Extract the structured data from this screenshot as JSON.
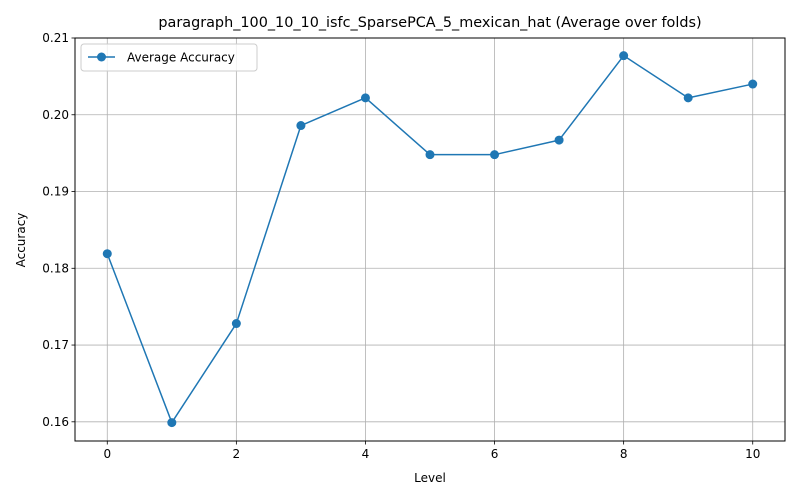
{
  "chart_data": {
    "type": "line",
    "title": "paragraph_100_10_10_isfc_SparsePCA_5_mexican_hat (Average over folds)",
    "xlabel": "Level",
    "ylabel": "Accuracy",
    "xlim": [
      -0.5,
      10.5
    ],
    "ylim": [
      0.1575,
      0.21
    ],
    "xticks": [
      0,
      2,
      4,
      6,
      8,
      10
    ],
    "xtick_labels": [
      "0",
      "2",
      "4",
      "6",
      "8",
      "10"
    ],
    "yticks": [
      0.16,
      0.17,
      0.18,
      0.19,
      0.2,
      0.21
    ],
    "ytick_labels": [
      "0.16",
      "0.17",
      "0.18",
      "0.19",
      "0.20",
      "0.21"
    ],
    "grid": true,
    "legend_position": "top-left",
    "series": [
      {
        "name": "Average Accuracy",
        "color": "#1f77b4",
        "marker": "circle",
        "x": [
          0,
          1,
          2,
          3,
          4,
          5,
          6,
          7,
          8,
          9,
          10
        ],
        "y": [
          0.1819,
          0.1599,
          0.1728,
          0.1986,
          0.2022,
          0.1948,
          0.1948,
          0.1967,
          0.2077,
          0.2022,
          0.204
        ]
      }
    ]
  }
}
